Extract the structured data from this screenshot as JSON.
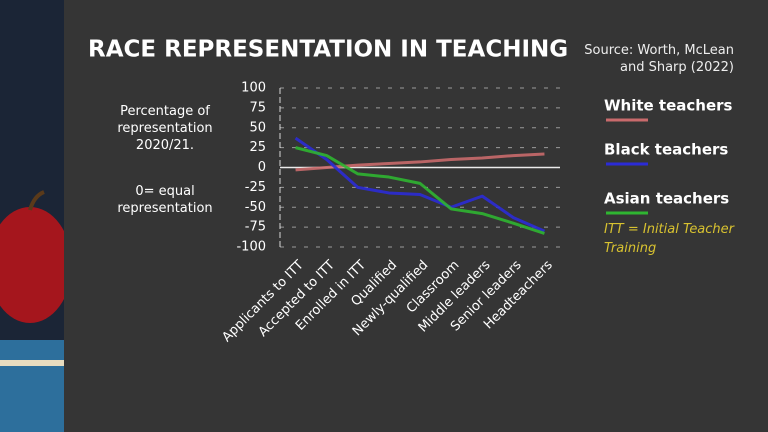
{
  "chart_data": {
    "type": "line",
    "title": "RACE REPRESENTATION IN TEACHING",
    "source": "Source: Worth, McLean and Sharp (2022)",
    "y_label": "Percentage of representation 2020/21.",
    "annotation": "0= equal representation",
    "note": "ITT = Initial Teacher Training",
    "categories": [
      "Applicants to ITT",
      "Accepted to ITT",
      "Enrolled in ITT",
      "Qualified",
      "Newly-qualified",
      "Classroom",
      "Middle leaders",
      "Senior leaders",
      "Headteachers"
    ],
    "series": [
      {
        "name": "White teachers",
        "color": "#c96a6c",
        "values": [
          -3,
          0,
          3,
          5,
          7,
          10,
          12,
          15,
          17
        ]
      },
      {
        "name": "Black teachers",
        "color": "#2b2bd6",
        "values": [
          37,
          10,
          -25,
          -32,
          -34,
          -50,
          -36,
          -63,
          -80
        ]
      },
      {
        "name": "Asian teachers",
        "color": "#2fb531",
        "values": [
          25,
          15,
          -8,
          -12,
          -20,
          -52,
          -58,
          -70,
          -83
        ]
      }
    ],
    "ylim": [
      -100,
      100
    ],
    "yticks": [
      -100,
      -75,
      -50,
      -25,
      0,
      25,
      50,
      75,
      100
    ],
    "grid": true
  }
}
